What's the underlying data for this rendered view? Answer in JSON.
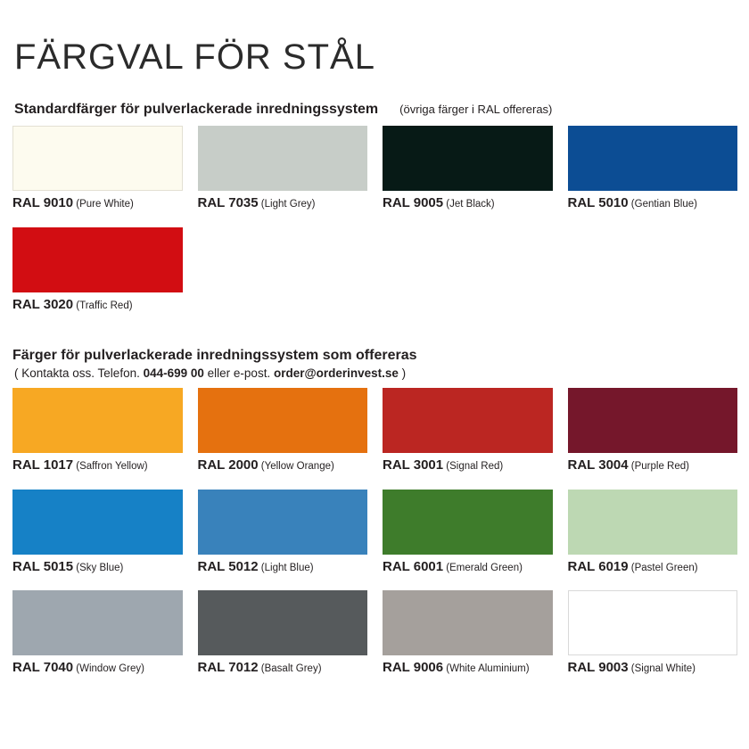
{
  "page": {
    "title": "FÄRGVAL FÖR STÅL"
  },
  "sections": [
    {
      "heading": "Standardfärger för pulverlackerade inredningssystem",
      "note": "(övriga färger i RAL offereras)",
      "swatches": [
        {
          "code": "RAL 9010",
          "name": "(Pure White)",
          "color": "#FDFBEF",
          "border": "#E3E0D3"
        },
        {
          "code": "RAL 7035",
          "name": "(Light Grey)",
          "color": "#C7CDC8"
        },
        {
          "code": "RAL 9005",
          "name": "(Jet Black)",
          "color": "#071A16"
        },
        {
          "code": "RAL 5010",
          "name": "(Gentian Blue)",
          "color": "#0C4D94"
        },
        {
          "code": "RAL 3020",
          "name": "(Traffic Red)",
          "color": "#D20D12"
        }
      ]
    },
    {
      "heading": "Färger för pulverlackerade inredningssystem som offereras",
      "contact": {
        "prefix": "( Kontakta oss. Telefon. ",
        "phone": "044-699 00",
        "middle": " eller e-post. ",
        "email": "order@orderinvest.se",
        "suffix": " )"
      },
      "swatches": [
        {
          "code": "RAL 1017",
          "name": "(Saffron Yellow)",
          "color": "#F7A823"
        },
        {
          "code": "RAL 2000",
          "name": "(Yellow Orange)",
          "color": "#E5710F"
        },
        {
          "code": "RAL 3001",
          "name": "(Signal Red)",
          "color": "#BB2622"
        },
        {
          "code": "RAL 3004",
          "name": "(Purple Red)",
          "color": "#75172B"
        },
        {
          "code": "RAL 5015",
          "name": "(Sky Blue)",
          "color": "#1681C6"
        },
        {
          "code": "RAL 5012",
          "name": "(Light Blue)",
          "color": "#3982BB"
        },
        {
          "code": "RAL 6001",
          "name": "(Emerald Green)",
          "color": "#3E7C2B"
        },
        {
          "code": "RAL 6019",
          "name": "(Pastel Green)",
          "color": "#BDD8B3"
        },
        {
          "code": "RAL 7040",
          "name": "(Window Grey)",
          "color": "#9EA7AF"
        },
        {
          "code": "RAL 7012",
          "name": "(Basalt Grey)",
          "color": "#565A5C"
        },
        {
          "code": "RAL 9006",
          "name": "(White Aluminium)",
          "color": "#A5A09C"
        },
        {
          "code": "RAL 9003",
          "name": "(Signal White)",
          "color": "#FFFFFF",
          "border": "#D9D9D9"
        }
      ]
    }
  ]
}
